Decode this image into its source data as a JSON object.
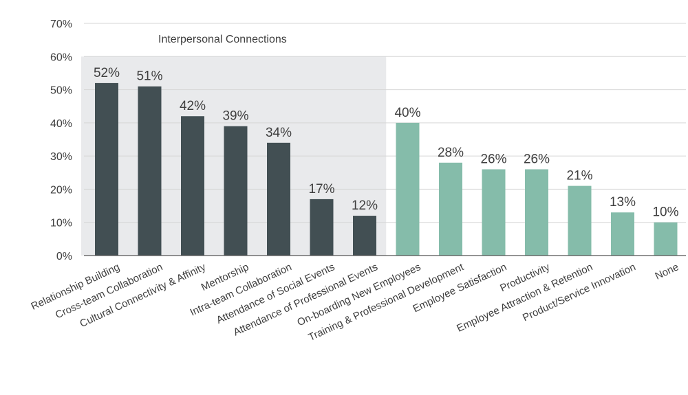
{
  "chart_data": {
    "type": "bar",
    "title": "",
    "xlabel": "",
    "ylabel": "",
    "ylim": [
      0,
      70
    ],
    "yticks": [
      0,
      10,
      20,
      30,
      40,
      50,
      60,
      70
    ],
    "ytick_suffix": "%",
    "grid": true,
    "highlight_group": {
      "label": "Interpersonal Connections",
      "first_index": 0,
      "last_index": 6,
      "ymax": 60,
      "color": "#e9eaec"
    },
    "colors": {
      "interpersonal": "#424f53",
      "other": "#85bcaa",
      "grid": "#d6d6d6",
      "axis": "#555555"
    },
    "categories": [
      "Relationship Building",
      "Cross-team Collaboration",
      "Cultural Connectivity & Affinity",
      "Mentorship",
      "Intra-team Collaboration",
      "Attendance of Social Events",
      "Attendance of Professional Events",
      "On-boarding New Employees",
      "Training & Professional Development",
      "Employee Satisfaction",
      "Productivity",
      "Employee Attraction & Retention",
      "Product/Service Innovation",
      "None"
    ],
    "values": [
      52,
      51,
      42,
      39,
      34,
      17,
      12,
      40,
      28,
      26,
      26,
      21,
      13,
      10
    ],
    "data_labels": [
      "52%",
      "51%",
      "42%",
      "39%",
      "34%",
      "17%",
      "12%",
      "40%",
      "28%",
      "26%",
      "26%",
      "21%",
      "13%",
      "10%"
    ],
    "groups": [
      "interpersonal",
      "interpersonal",
      "interpersonal",
      "interpersonal",
      "interpersonal",
      "interpersonal",
      "interpersonal",
      "other",
      "other",
      "other",
      "other",
      "other",
      "other",
      "other"
    ]
  }
}
